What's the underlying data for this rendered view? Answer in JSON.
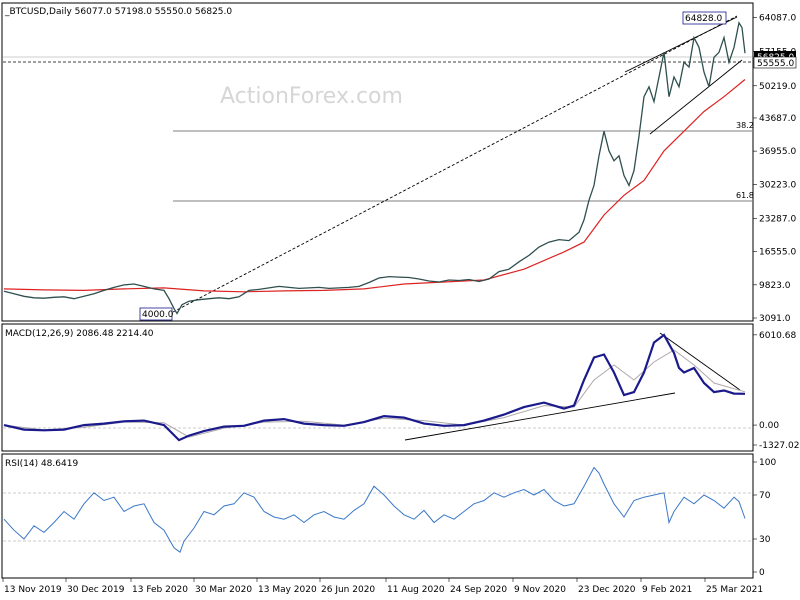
{
  "watermark": "ActionForex.com",
  "x_axis": {
    "labels": [
      "13 Nov 2019",
      "30 Dec 2019",
      "13 Feb 2020",
      "30 Mar 2020",
      "13 May 2020",
      "26 Jun 2020",
      "11 Aug 2020",
      "24 Sep 2020",
      "9 Nov 2020",
      "23 Dec 2020",
      "9 Feb 2021",
      "25 Mar 2021"
    ]
  },
  "colors": {
    "price": "#2f4f4f",
    "ma": "#dd2222",
    "macd": "#1a1a8c",
    "signal": "#b0a8a8",
    "rsi": "#3a78c8",
    "trend": "#000000",
    "grid": "#9a9a9a"
  },
  "chart_data": [
    {
      "type": "line",
      "title": "_BTCUSD,Daily  56077.0 57198.0 55550.0 56825.0",
      "yticks": [
        "64087.0",
        "57155.0",
        "50219.0",
        "43687.0",
        "36955.0",
        "30223.0",
        "23287.0",
        "16555.0",
        "9823.0",
        "3091.0"
      ],
      "ylim": [
        3091,
        66000
      ],
      "annotations": {
        "high": "64828.0",
        "low": "4000.0",
        "current_price": "56825.0",
        "level": "55555.0",
        "fib_382": "38.2",
        "fib_618": "61.8"
      },
      "series": [
        {
          "points": [
            [
              0,
              8500
            ],
            [
              10,
              8000
            ],
            [
              20,
              7500
            ],
            [
              30,
              7200
            ],
            [
              40,
              7100
            ],
            [
              50,
              7300
            ],
            [
              60,
              7400
            ],
            [
              70,
              7000
            ],
            [
              80,
              7500
            ],
            [
              90,
              8000
            ],
            [
              100,
              8700
            ],
            [
              110,
              9300
            ],
            [
              120,
              9800
            ],
            [
              130,
              10000
            ],
            [
              140,
              9500
            ],
            [
              150,
              9000
            ],
            [
              160,
              8700
            ],
            [
              165,
              7000
            ],
            [
              170,
              5000
            ],
            [
              173,
              4000
            ],
            [
              178,
              5800
            ],
            [
              185,
              6500
            ],
            [
              195,
              6800
            ],
            [
              205,
              7000
            ],
            [
              215,
              7200
            ],
            [
              225,
              7000
            ],
            [
              235,
              7400
            ],
            [
              245,
              8700
            ],
            [
              255,
              8900
            ],
            [
              265,
              9200
            ],
            [
              275,
              9500
            ],
            [
              285,
              9300
            ],
            [
              295,
              9100
            ],
            [
              305,
              9200
            ],
            [
              315,
              9300
            ],
            [
              325,
              9100
            ],
            [
              335,
              9200
            ],
            [
              345,
              9300
            ],
            [
              355,
              9500
            ],
            [
              365,
              10300
            ],
            [
              375,
              11200
            ],
            [
              385,
              11500
            ],
            [
              395,
              11400
            ],
            [
              405,
              11300
            ],
            [
              415,
              11000
            ],
            [
              425,
              10600
            ],
            [
              435,
              10400
            ],
            [
              445,
              10800
            ],
            [
              455,
              10700
            ],
            [
              465,
              10900
            ],
            [
              475,
              10500
            ],
            [
              485,
              11000
            ],
            [
              495,
              12500
            ],
            [
              505,
              13000
            ],
            [
              515,
              14500
            ],
            [
              525,
              15800
            ],
            [
              535,
              17500
            ],
            [
              545,
              18500
            ],
            [
              555,
              19000
            ],
            [
              565,
              18800
            ],
            [
              575,
              20500
            ],
            [
              580,
              23000
            ],
            [
              585,
              27000
            ],
            [
              590,
              30000
            ],
            [
              595,
              36000
            ],
            [
              600,
              41000
            ],
            [
              605,
              37000
            ],
            [
              610,
              35000
            ],
            [
              615,
              36000
            ],
            [
              620,
              32000
            ],
            [
              625,
              30000
            ],
            [
              630,
              33000
            ],
            [
              635,
              40000
            ],
            [
              640,
              48000
            ],
            [
              645,
              50000
            ],
            [
              650,
              47000
            ],
            [
              655,
              52000
            ],
            [
              660,
              57000
            ],
            [
              665,
              48000
            ],
            [
              670,
              52000
            ],
            [
              675,
              50000
            ],
            [
              680,
              55000
            ],
            [
              685,
              54000
            ],
            [
              690,
              60000
            ],
            [
              695,
              58000
            ],
            [
              700,
              53000
            ],
            [
              705,
              50000
            ],
            [
              710,
              56000
            ],
            [
              715,
              57000
            ],
            [
              720,
              60000
            ],
            [
              725,
              55000
            ],
            [
              730,
              58000
            ],
            [
              735,
              63000
            ],
            [
              738,
              62000
            ],
            [
              741,
              56825
            ]
          ]
        },
        {
          "points": [
            [
              0,
              9000
            ],
            [
              40,
              8800
            ],
            [
              80,
              8700
            ],
            [
              120,
              9000
            ],
            [
              160,
              9200
            ],
            [
              200,
              8600
            ],
            [
              240,
              8400
            ],
            [
              280,
              8600
            ],
            [
              320,
              8700
            ],
            [
              360,
              9000
            ],
            [
              400,
              10000
            ],
            [
              440,
              10400
            ],
            [
              480,
              10800
            ],
            [
              520,
              13000
            ],
            [
              560,
              16500
            ],
            [
              580,
              18500
            ],
            [
              600,
              24000
            ],
            [
              620,
              28000
            ],
            [
              640,
              31000
            ],
            [
              660,
              37000
            ],
            [
              680,
              41000
            ],
            [
              700,
              45000
            ],
            [
              720,
              48000
            ],
            [
              741,
              51500
            ]
          ]
        }
      ]
    },
    {
      "type": "line",
      "title": "MACD(12,26,9) 2086.48 2214.40",
      "yticks": [
        "6010.68",
        "0.00",
        "-1327.02"
      ],
      "ylim": [
        -1327.02,
        6200
      ],
      "series": [
        {
          "points": [
            [
              0,
              0
            ],
            [
              20,
              -300
            ],
            [
              40,
              -350
            ],
            [
              60,
              -300
            ],
            [
              80,
              0
            ],
            [
              100,
              100
            ],
            [
              120,
              250
            ],
            [
              140,
              300
            ],
            [
              160,
              0
            ],
            [
              175,
              -1000
            ],
            [
              185,
              -700
            ],
            [
              200,
              -400
            ],
            [
              220,
              -100
            ],
            [
              240,
              -50
            ],
            [
              260,
              300
            ],
            [
              280,
              400
            ],
            [
              300,
              100
            ],
            [
              320,
              0
            ],
            [
              340,
              -50
            ],
            [
              360,
              200
            ],
            [
              380,
              600
            ],
            [
              400,
              500
            ],
            [
              420,
              100
            ],
            [
              440,
              -50
            ],
            [
              460,
              0
            ],
            [
              480,
              300
            ],
            [
              500,
              700
            ],
            [
              520,
              1200
            ],
            [
              540,
              1500
            ],
            [
              560,
              1100
            ],
            [
              570,
              1300
            ],
            [
              580,
              3000
            ],
            [
              590,
              4500
            ],
            [
              600,
              4700
            ],
            [
              610,
              3500
            ],
            [
              620,
              2000
            ],
            [
              630,
              2200
            ],
            [
              640,
              3500
            ],
            [
              650,
              5500
            ],
            [
              660,
              6000
            ],
            [
              670,
              4800
            ],
            [
              675,
              3800
            ],
            [
              680,
              3500
            ],
            [
              690,
              3800
            ],
            [
              700,
              2800
            ],
            [
              710,
              2200
            ],
            [
              720,
              2300
            ],
            [
              730,
              2100
            ],
            [
              741,
              2086
            ]
          ]
        },
        {
          "points": [
            [
              0,
              0
            ],
            [
              40,
              -320
            ],
            [
              80,
              -150
            ],
            [
              120,
              200
            ],
            [
              160,
              150
            ],
            [
              185,
              -800
            ],
            [
              220,
              -200
            ],
            [
              260,
              200
            ],
            [
              300,
              250
            ],
            [
              340,
              0
            ],
            [
              380,
              450
            ],
            [
              420,
              300
            ],
            [
              460,
              0
            ],
            [
              500,
              500
            ],
            [
              540,
              1300
            ],
            [
              570,
              1200
            ],
            [
              590,
              3000
            ],
            [
              610,
              4000
            ],
            [
              630,
              3000
            ],
            [
              650,
              4200
            ],
            [
              670,
              5000
            ],
            [
              690,
              4000
            ],
            [
              710,
              2800
            ],
            [
              741,
              2214
            ]
          ]
        }
      ]
    },
    {
      "type": "line",
      "title": "RSI(14) 48.6419",
      "yticks": [
        "100",
        "70",
        "30",
        "0"
      ],
      "ylim": [
        0,
        100
      ],
      "series": [
        {
          "points": [
            [
              0,
              48
            ],
            [
              10,
              38
            ],
            [
              20,
              30
            ],
            [
              30,
              42
            ],
            [
              40,
              36
            ],
            [
              50,
              45
            ],
            [
              60,
              55
            ],
            [
              70,
              48
            ],
            [
              80,
              62
            ],
            [
              90,
              72
            ],
            [
              100,
              65
            ],
            [
              110,
              68
            ],
            [
              120,
              55
            ],
            [
              130,
              60
            ],
            [
              140,
              62
            ],
            [
              150,
              45
            ],
            [
              160,
              38
            ],
            [
              170,
              22
            ],
            [
              176,
              18
            ],
            [
              180,
              28
            ],
            [
              190,
              40
            ],
            [
              200,
              55
            ],
            [
              210,
              52
            ],
            [
              220,
              60
            ],
            [
              230,
              62
            ],
            [
              240,
              72
            ],
            [
              250,
              68
            ],
            [
              260,
              55
            ],
            [
              270,
              50
            ],
            [
              280,
              48
            ],
            [
              290,
              52
            ],
            [
              300,
              45
            ],
            [
              310,
              52
            ],
            [
              320,
              55
            ],
            [
              330,
              50
            ],
            [
              340,
              48
            ],
            [
              350,
              56
            ],
            [
              360,
              62
            ],
            [
              370,
              78
            ],
            [
              380,
              70
            ],
            [
              390,
              60
            ],
            [
              400,
              52
            ],
            [
              410,
              48
            ],
            [
              420,
              56
            ],
            [
              430,
              45
            ],
            [
              440,
              52
            ],
            [
              450,
              48
            ],
            [
              460,
              55
            ],
            [
              470,
              62
            ],
            [
              480,
              65
            ],
            [
              490,
              72
            ],
            [
              500,
              68
            ],
            [
              510,
              72
            ],
            [
              520,
              75
            ],
            [
              530,
              70
            ],
            [
              540,
              75
            ],
            [
              550,
              65
            ],
            [
              560,
              60
            ],
            [
              570,
              62
            ],
            [
              580,
              78
            ],
            [
              590,
              95
            ],
            [
              595,
              90
            ],
            [
              600,
              80
            ],
            [
              610,
              62
            ],
            [
              620,
              50
            ],
            [
              630,
              65
            ],
            [
              640,
              68
            ],
            [
              650,
              70
            ],
            [
              660,
              72
            ],
            [
              665,
              45
            ],
            [
              670,
              55
            ],
            [
              680,
              68
            ],
            [
              690,
              62
            ],
            [
              700,
              70
            ],
            [
              710,
              65
            ],
            [
              720,
              58
            ],
            [
              730,
              68
            ],
            [
              735,
              64
            ],
            [
              741,
              48.64
            ]
          ]
        }
      ]
    }
  ]
}
